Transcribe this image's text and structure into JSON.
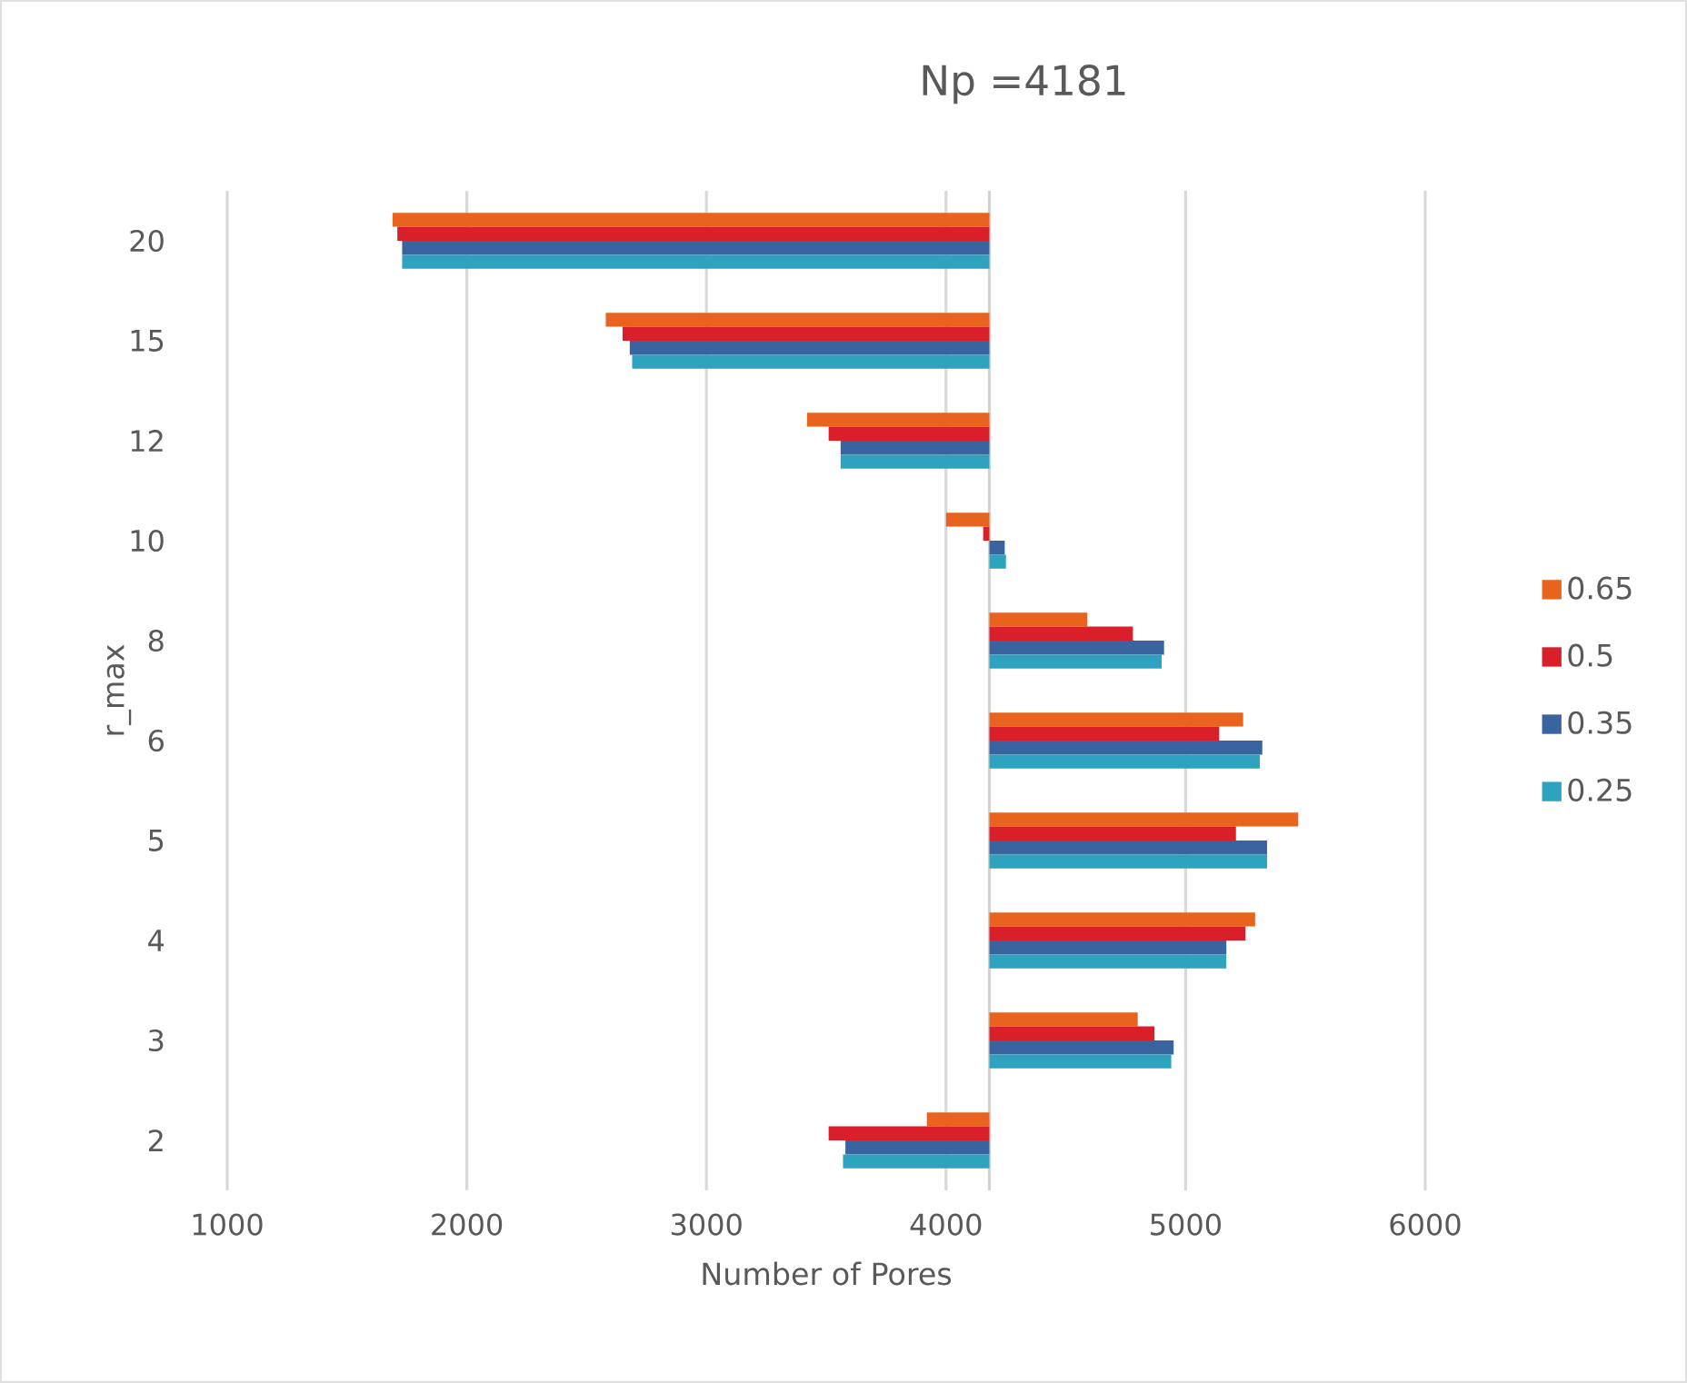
{
  "chart_data": {
    "type": "bar",
    "orientation": "horizontal",
    "title": "Np =4181",
    "xlabel": "Number of Pores",
    "ylabel": "r_max",
    "categories": [
      "20",
      "15",
      "12",
      "10",
      "8",
      "6",
      "5",
      "4",
      "3",
      "2"
    ],
    "series": [
      {
        "name": "0.65",
        "color": "#e8631e",
        "base": [
          4181,
          4181,
          4181,
          4181,
          4181,
          4181,
          4181,
          4181,
          4181,
          4181
        ],
        "values": [
          -2491,
          -1601,
          -761,
          -181,
          409,
          1059,
          1289,
          1109,
          619,
          -261
        ]
      },
      {
        "name": "0.5",
        "color": "#d9202a",
        "base": [
          4181,
          4181,
          4181,
          4181,
          4181,
          4181,
          4181,
          4181,
          4181,
          4181
        ],
        "values": [
          -2471,
          -1531,
          -671,
          -26,
          599,
          959,
          1029,
          1069,
          689,
          -671
        ]
      },
      {
        "name": "0.35",
        "color": "#3a64a0",
        "base": [
          4181,
          4181,
          4181,
          4181,
          4181,
          4181,
          4181,
          4181,
          4181,
          4181
        ],
        "values": [
          -2451,
          -1501,
          -621,
          64,
          729,
          1139,
          1159,
          989,
          769,
          -601
        ]
      },
      {
        "name": "0.25",
        "color": "#2ea3c0",
        "base": [
          4181,
          4181,
          4181,
          4181,
          4181,
          4181,
          4181,
          4181,
          4181,
          4181
        ],
        "values": [
          -2451,
          -1491,
          -621,
          69,
          719,
          1129,
          1159,
          989,
          759,
          -611
        ]
      }
    ],
    "xlim": [
      1000,
      6000
    ],
    "xticks": [
      1000,
      2000,
      3000,
      4000,
      5000,
      6000
    ],
    "grid": "x",
    "legend": "right",
    "ref_lines": [
      {
        "axis": "x",
        "value": 4181,
        "color": "#d2d2d2"
      }
    ]
  }
}
